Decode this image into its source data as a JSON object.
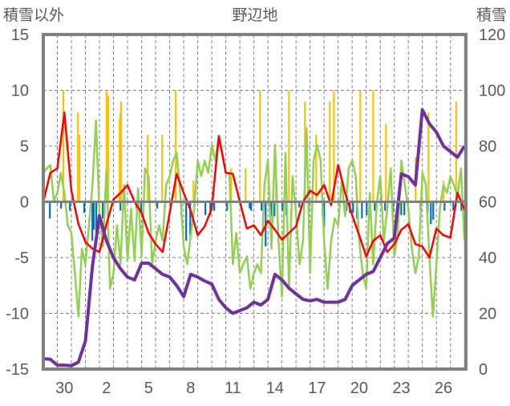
{
  "chart_data": {
    "type": "line",
    "title": "野辺地",
    "ylabel_left": "積雪以外",
    "ylabel_right": "積雪",
    "ylim_left": [
      -15,
      15
    ],
    "ylim_right": [
      0,
      120
    ],
    "left_ticks": [
      "15",
      "10",
      "5",
      "0",
      "-5",
      "-10",
      "-15"
    ],
    "left_tick_values": [
      15,
      10,
      5,
      0,
      -5,
      -10,
      -15
    ],
    "right_ticks": [
      "120",
      "100",
      "80",
      "60",
      "40",
      "20",
      "0"
    ],
    "right_tick_values": [
      120,
      100,
      80,
      60,
      40,
      20,
      0
    ],
    "x_unit": "days from start of plotted range",
    "xlim": [
      0,
      30.1
    ],
    "x_tick_labels": [
      "30",
      "2",
      "5",
      "8",
      "11",
      "14",
      "17",
      "20",
      "23",
      "26"
    ],
    "x_tick_positions": [
      1.5,
      4.5,
      7.5,
      10.5,
      13.5,
      16.5,
      19.5,
      22.5,
      25.5,
      28.5
    ],
    "grid": true,
    "series": [
      {
        "name": "green",
        "color": "#92d050",
        "axis": "left",
        "x_start": 0,
        "x_step": 0.25,
        "values": [
          2.6,
          3.0,
          3.3,
          0.1,
          0.8,
          2.6,
          0.8,
          -2.1,
          -2.8,
          -6.4,
          -10.3,
          -4.2,
          -5.6,
          -2.1,
          1.5,
          7.3,
          -1.0,
          -4.0,
          3.0,
          -7.8,
          -6.4,
          -2.1,
          -5.6,
          1.5,
          -5.3,
          -0.6,
          -5.3,
          1.2,
          -4.9,
          3.0,
          2.3,
          -5.6,
          -3.5,
          -2.1,
          -3.5,
          1.5,
          2.3,
          3.7,
          4.4,
          0.8,
          -4.0,
          -5.6,
          -3.1,
          -0.6,
          3.7,
          2.3,
          3.7,
          2.6,
          5.1,
          3.7,
          5.9,
          4.4,
          2.6,
          2.6,
          -5.6,
          -2.8,
          -6.4,
          -5.6,
          -4.9,
          -7.8,
          -6.4,
          -5.6,
          -6.4,
          1.5,
          3.7,
          -4.2,
          5.1,
          -3.5,
          -8.5,
          4.4,
          -7.8,
          2.3,
          -1.0,
          -5.6,
          -3.5,
          6.6,
          -6.4,
          3.7,
          5.1,
          3.7,
          -3.5,
          -7.8,
          -3.5,
          -1.5,
          -2.1,
          1.9,
          -1.3,
          3.0,
          3.7,
          2.3,
          -3.5,
          -6.4,
          -7.8,
          0.8,
          -5.6,
          -0.2,
          2.3,
          -3.5,
          -0.6,
          3.0,
          -4.9,
          -2.8,
          3.7,
          1.5,
          -0.6,
          -4.2,
          -6.4,
          -4.9,
          2.6,
          1.5,
          -5.0,
          -10.3,
          -5.6,
          -0.6,
          1.5,
          0.8,
          2.3,
          1.5,
          0.5,
          3.0,
          -3.5
        ]
      },
      {
        "name": "red",
        "color": "#ff0000",
        "axis": "left",
        "x_start": 0,
        "x_step": 0.5,
        "values": [
          0,
          2.6,
          3.0,
          8.0,
          1.0,
          -2.0,
          -3.6,
          -4.2,
          -4.5,
          -2.0,
          0.2,
          0.8,
          1.5,
          0,
          -1.0,
          -2.8,
          -3.8,
          -4.5,
          -1.0,
          2.5,
          0.8,
          -0.8,
          -3.0,
          -2.2,
          -0.6,
          5.9,
          2.6,
          2.5,
          0,
          -2.4,
          -2.1,
          -3.0,
          -1.7,
          -2.5,
          -3.4,
          -2.8,
          -2.2,
          0,
          1.0,
          0.6,
          1.5,
          -0.3,
          3.3,
          0.8,
          -1.2,
          -3.0,
          -4.9,
          -3.5,
          -3.0,
          -4.5,
          -3.8,
          -2.5,
          -2.0,
          -3.8,
          -4.0,
          -5.0,
          -2.4,
          -3.0,
          -3.2,
          0.8,
          -0.7
        ]
      },
      {
        "name": "purple",
        "color": "#7030a0",
        "axis": "right",
        "x_start": 0,
        "x_step": 0.5,
        "values": [
          3.7,
          3.5,
          1.4,
          1.4,
          1.2,
          2.5,
          10,
          37,
          55,
          46,
          40,
          36,
          33,
          32,
          38,
          38,
          36,
          34,
          33,
          30,
          26,
          34,
          33,
          31.6,
          30.5,
          25,
          22,
          20,
          21,
          22,
          24,
          23,
          25,
          34,
          32,
          29,
          27,
          25,
          24.5,
          25,
          24,
          24,
          24,
          25,
          30,
          32,
          34,
          35,
          40,
          45,
          47,
          70,
          69,
          66,
          93,
          88,
          85,
          80,
          78,
          76,
          80
        ]
      }
    ],
    "bars": [
      {
        "name": "yellow",
        "color": "#ffc000",
        "axis": "left",
        "points": [
          [
            1.43,
            10
          ],
          [
            2.46,
            8
          ],
          [
            2.51,
            6
          ],
          [
            2.57,
            6
          ],
          [
            4.51,
            10
          ],
          [
            4.63,
            9.5
          ],
          [
            5.43,
            7.5
          ],
          [
            5.49,
            8
          ],
          [
            5.54,
            9
          ],
          [
            7.43,
            6
          ],
          [
            8.46,
            6
          ],
          [
            9.43,
            10
          ],
          [
            10.69,
            1.9
          ],
          [
            13.37,
            3
          ],
          [
            14.4,
            3
          ],
          [
            15.43,
            10
          ],
          [
            16.57,
            3.9
          ],
          [
            17.49,
            10
          ],
          [
            18.63,
            9
          ],
          [
            19.43,
            6
          ],
          [
            20.4,
            9
          ],
          [
            20.69,
            10
          ],
          [
            22.57,
            10
          ],
          [
            23.49,
            10
          ],
          [
            24.4,
            7
          ],
          [
            26.51,
            4
          ],
          [
            27.43,
            8
          ],
          [
            28.51,
            1.9
          ],
          [
            29.4,
            9
          ]
        ]
      },
      {
        "name": "blue",
        "color": "#0070c0",
        "axis": "left",
        "points": [
          [
            0.46,
            -1.5
          ],
          [
            1.26,
            -0.6
          ],
          [
            1.89,
            -0.8
          ],
          [
            2.91,
            -1
          ],
          [
            3.49,
            -3.5
          ],
          [
            3.6,
            -2.5
          ],
          [
            3.77,
            -3
          ],
          [
            4.23,
            -1.5
          ],
          [
            5.49,
            -0.8
          ],
          [
            6.63,
            -0.6
          ],
          [
            6.97,
            -1
          ],
          [
            8.11,
            -0.6
          ],
          [
            9.83,
            -1.2
          ],
          [
            10.17,
            -3.5
          ],
          [
            10.46,
            -3
          ],
          [
            11.54,
            -1.2
          ],
          [
            11.89,
            -1.2
          ],
          [
            12.17,
            -0.8
          ],
          [
            13.09,
            -0.8
          ],
          [
            14.69,
            -0.6
          ],
          [
            14.8,
            -0.8
          ],
          [
            15.54,
            -0.8
          ],
          [
            15.83,
            -4
          ],
          [
            16.23,
            -1.3
          ],
          [
            16.46,
            -1.3
          ],
          [
            17.03,
            -0.8
          ],
          [
            17.31,
            -1.2
          ],
          [
            18.23,
            -0.5
          ],
          [
            18.91,
            -0.8
          ],
          [
            19.89,
            -1.3
          ],
          [
            20.0,
            -2.2
          ],
          [
            21.6,
            -0.8
          ],
          [
            21.83,
            -1
          ],
          [
            22.06,
            -1
          ],
          [
            22.34,
            -1.5
          ],
          [
            22.69,
            -1.5
          ],
          [
            23.03,
            -1.2
          ],
          [
            23.6,
            -0.8
          ],
          [
            24.34,
            -0.8
          ],
          [
            24.91,
            -1
          ],
          [
            25.49,
            -1.2
          ],
          [
            25.71,
            -1.2
          ],
          [
            26.86,
            -0.8
          ],
          [
            27.37,
            -1
          ],
          [
            27.6,
            -2
          ],
          [
            27.77,
            -1.6
          ],
          [
            28.57,
            -0.8
          ],
          [
            29.2,
            -0.8
          ],
          [
            29.77,
            -0.8
          ]
        ]
      }
    ]
  }
}
